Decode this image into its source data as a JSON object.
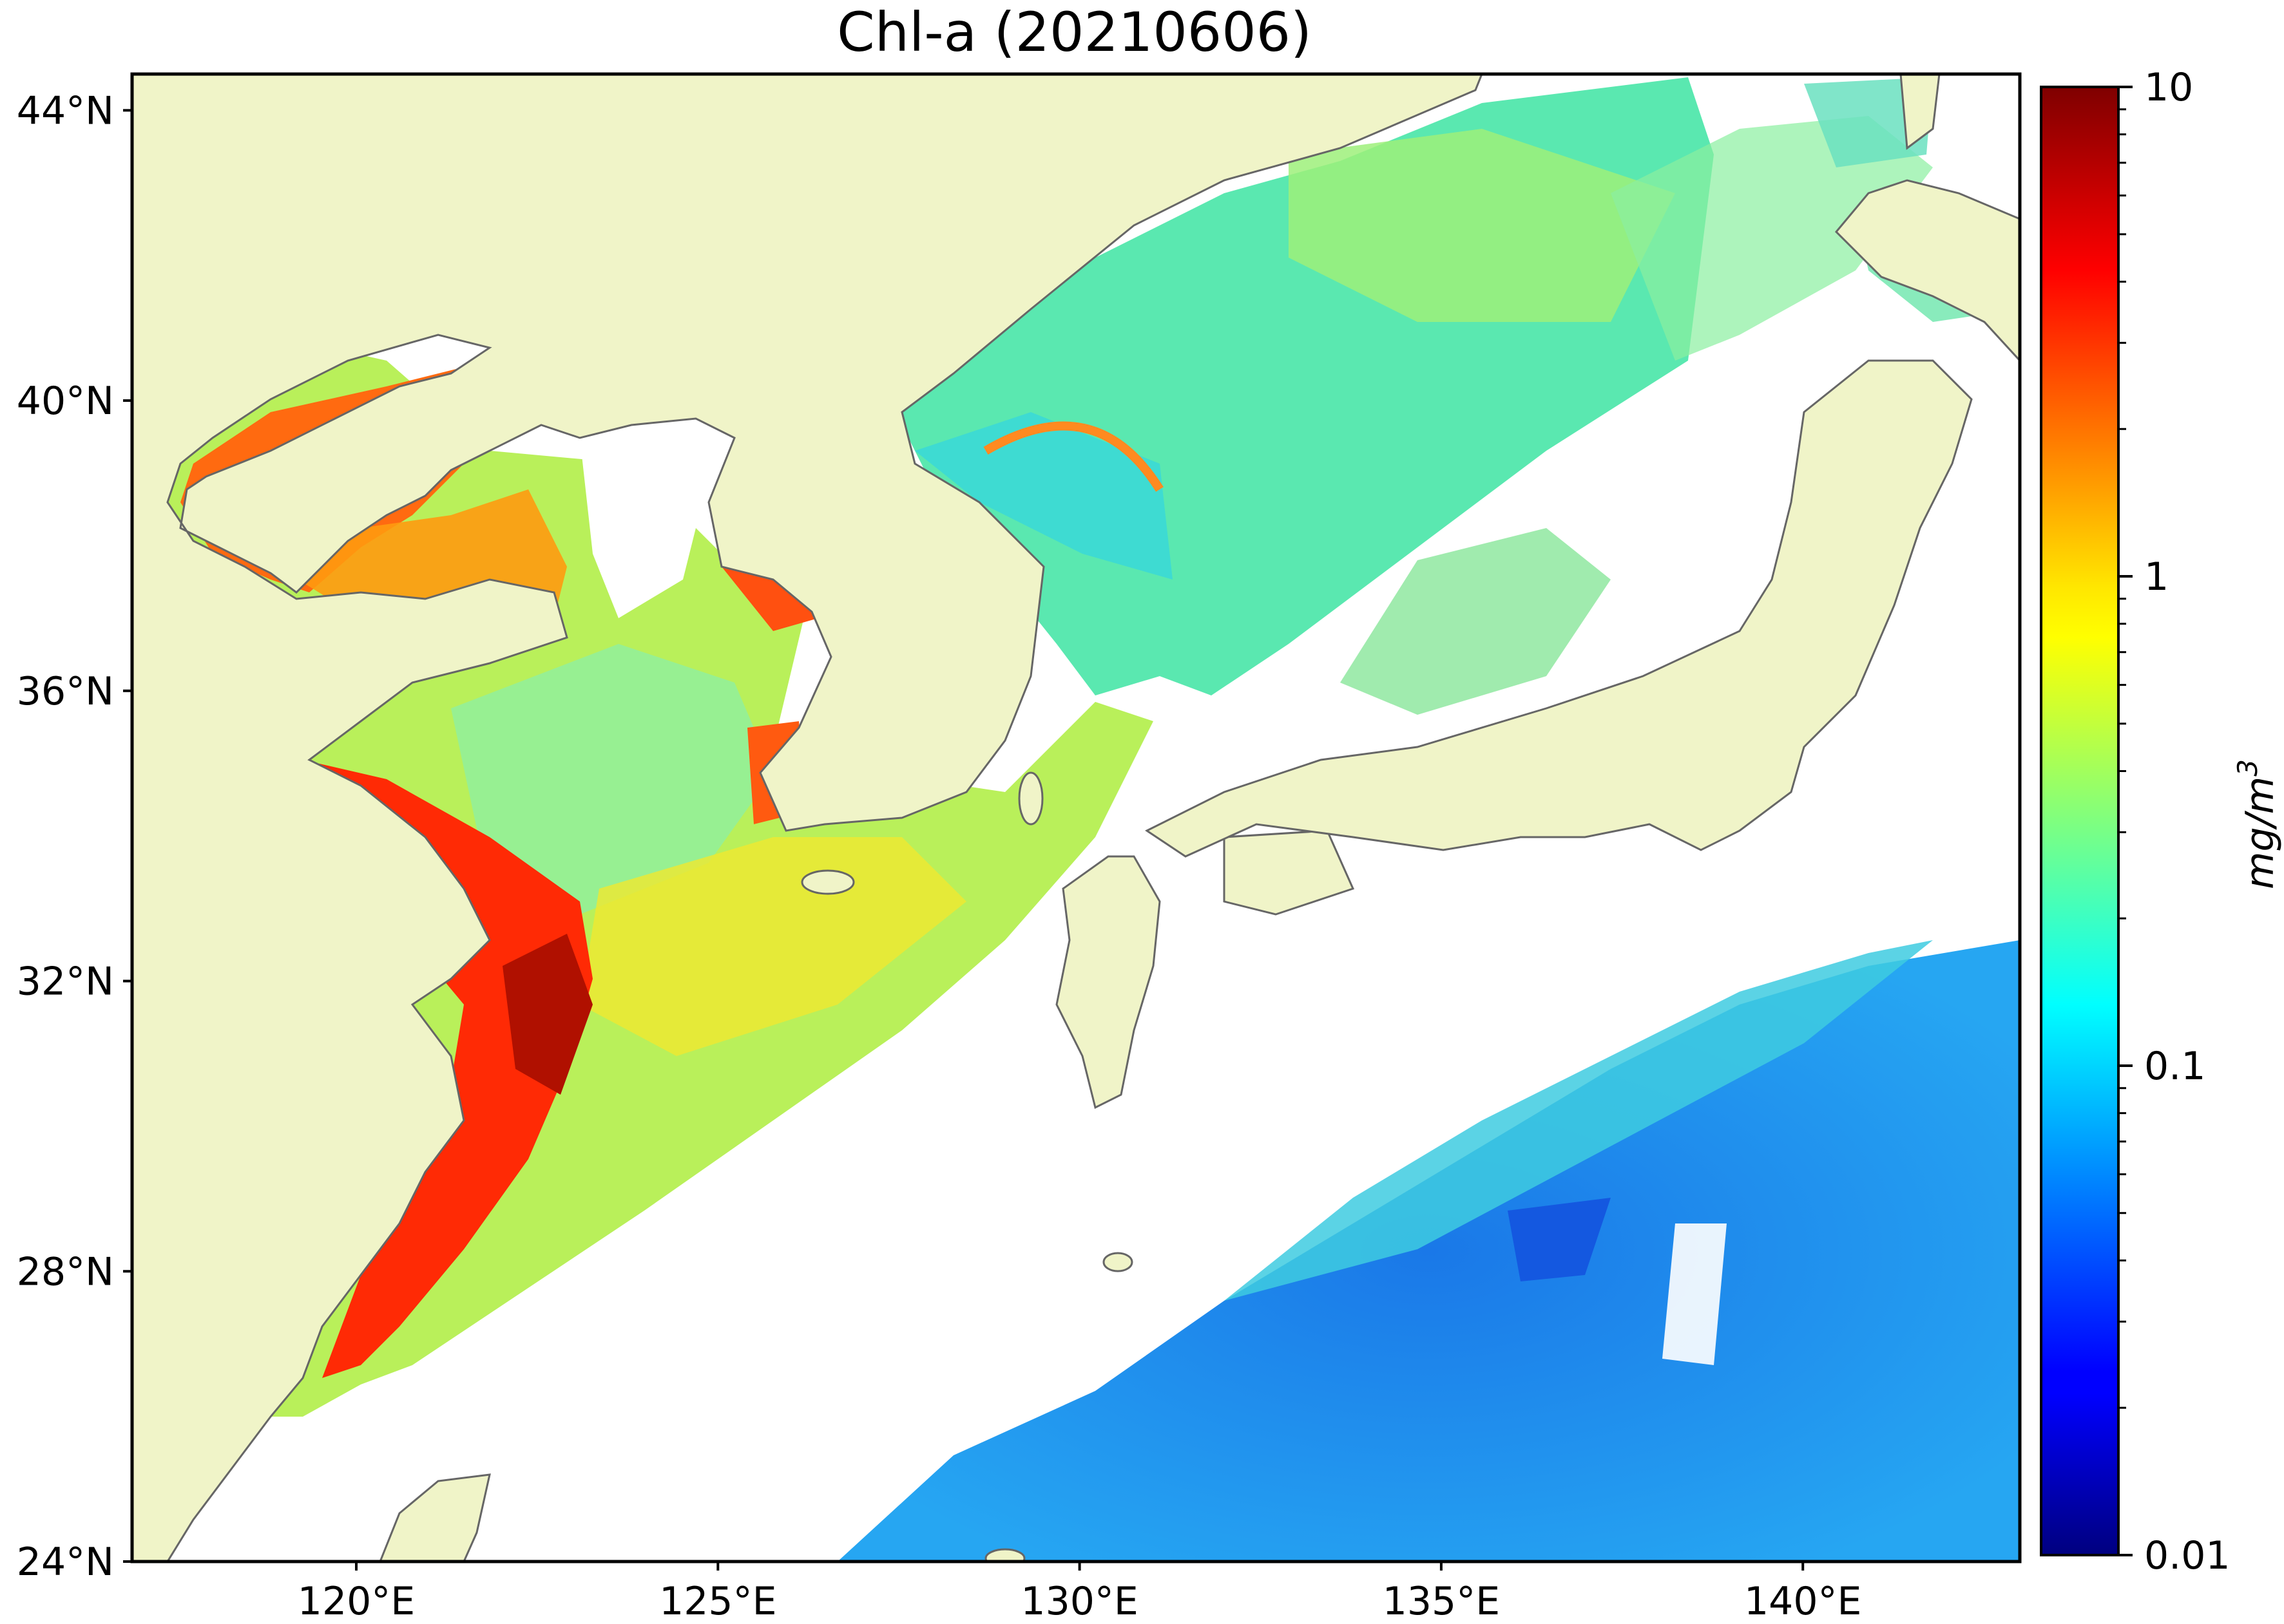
{
  "title": "Chl-a (20210606)",
  "map": {
    "lon_range": [
      116.9,
      143.0
    ],
    "lat_range": [
      24.0,
      44.5
    ],
    "lat_ticks": [
      {
        "value": 44,
        "label": "44°N"
      },
      {
        "value": 40,
        "label": "40°N"
      },
      {
        "value": 36,
        "label": "36°N"
      },
      {
        "value": 32,
        "label": "32°N"
      },
      {
        "value": 28,
        "label": "28°N"
      },
      {
        "value": 24,
        "label": "24°N"
      }
    ],
    "lon_ticks": [
      {
        "value": 120,
        "label": "120°E"
      },
      {
        "value": 125,
        "label": "125°E"
      },
      {
        "value": 130,
        "label": "130°E"
      },
      {
        "value": 135,
        "label": "135°E"
      },
      {
        "value": 140,
        "label": "140°E"
      }
    ],
    "land_color": "#f0f4c8",
    "coast_color": "#666666",
    "nodata_color": "#ffffff"
  },
  "colorbar": {
    "colormap": "jet",
    "scale": "log",
    "range": [
      0.01,
      10
    ],
    "ticks": [
      {
        "value": 10,
        "label": "10"
      },
      {
        "value": 1,
        "label": "1"
      },
      {
        "value": 0.1,
        "label": "0.1"
      },
      {
        "value": 0.01,
        "label": "0.01"
      }
    ],
    "unit_label": "mg/m",
    "unit_superscript": "3"
  }
}
